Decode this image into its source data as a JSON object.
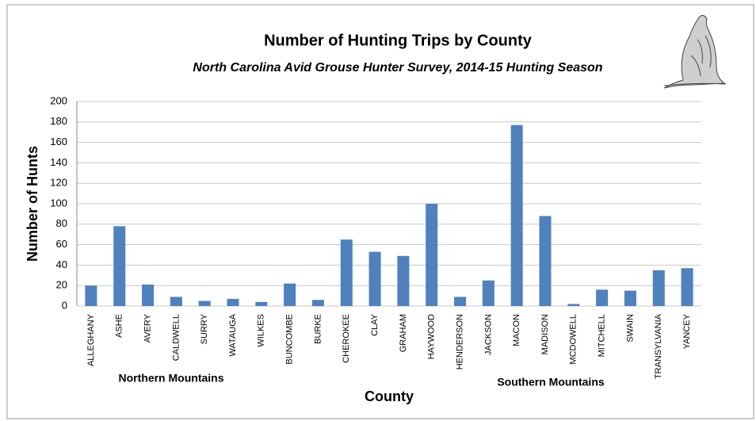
{
  "chart_data": {
    "type": "bar",
    "title": "Number of Hunting Trips by County",
    "subtitle": "North Carolina  Avid Grouse Hunter Survey, 2014-15 Hunting Season",
    "x_label": "County",
    "y_label": "Number of Hunts",
    "annotations": [
      "Northern Mountains",
      "Southern Mountains"
    ],
    "categories": [
      "ALLEGHANY",
      "ASHE",
      "AVERY",
      "CALDWELL",
      "SURRY",
      "WATAUGA",
      "WILKES",
      "BUNCOMBE",
      "BURKE",
      "CHEROKEE",
      "CLAY",
      "GRAHAM",
      "HAYWOOD",
      "HENDERSON",
      "JACKSON",
      "MACON",
      "MADISON",
      "MCDOWELL",
      "MITCHELL",
      "SWAIN",
      "TRANSYLVANIA",
      "YANCEY"
    ],
    "values": [
      20,
      78,
      21,
      9,
      5,
      7,
      4,
      22,
      6,
      65,
      53,
      49,
      100,
      9,
      25,
      177,
      88,
      2,
      16,
      15,
      35,
      37
    ],
    "color": "#4f81bd",
    "ylim": [
      0,
      200
    ],
    "yticks": [
      0,
      20,
      40,
      60,
      80,
      100,
      120,
      140,
      160,
      180,
      200
    ],
    "grid": true
  }
}
